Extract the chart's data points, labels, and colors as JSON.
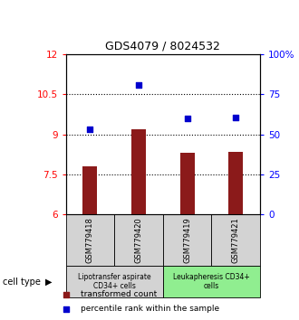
{
  "title": "GDS4079 / 8024532",
  "samples": [
    "GSM779418",
    "GSM779420",
    "GSM779419",
    "GSM779421"
  ],
  "bar_values": [
    7.8,
    9.2,
    8.3,
    8.35
  ],
  "dot_values": [
    9.2,
    10.85,
    9.6,
    9.65
  ],
  "bar_color": "#8B1A1A",
  "dot_color": "#0000CD",
  "ylim_left": [
    6,
    12
  ],
  "ylim_right": [
    0,
    100
  ],
  "yticks_left": [
    6,
    7.5,
    9,
    10.5,
    12
  ],
  "yticks_right": [
    0,
    25,
    50,
    75,
    100
  ],
  "ytick_labels_left": [
    "6",
    "7.5",
    "9",
    "10.5",
    "12"
  ],
  "ytick_labels_right": [
    "0",
    "25",
    "50",
    "75",
    "100%"
  ],
  "hlines": [
    7.5,
    9.0,
    10.5
  ],
  "cell_type_groups": [
    {
      "label": "Lipotransfer aspirate\nCD34+ cells",
      "samples": [
        0,
        1
      ],
      "color": "#d3d3d3"
    },
    {
      "label": "Leukapheresis CD34+\ncells",
      "samples": [
        2,
        3
      ],
      "color": "#90EE90"
    }
  ],
  "cell_type_label": "cell type",
  "legend_bar_label": "transformed count",
  "legend_dot_label": "percentile rank within the sample",
  "bar_bottom": 6.0,
  "sample_box_color": "#d3d3d3"
}
